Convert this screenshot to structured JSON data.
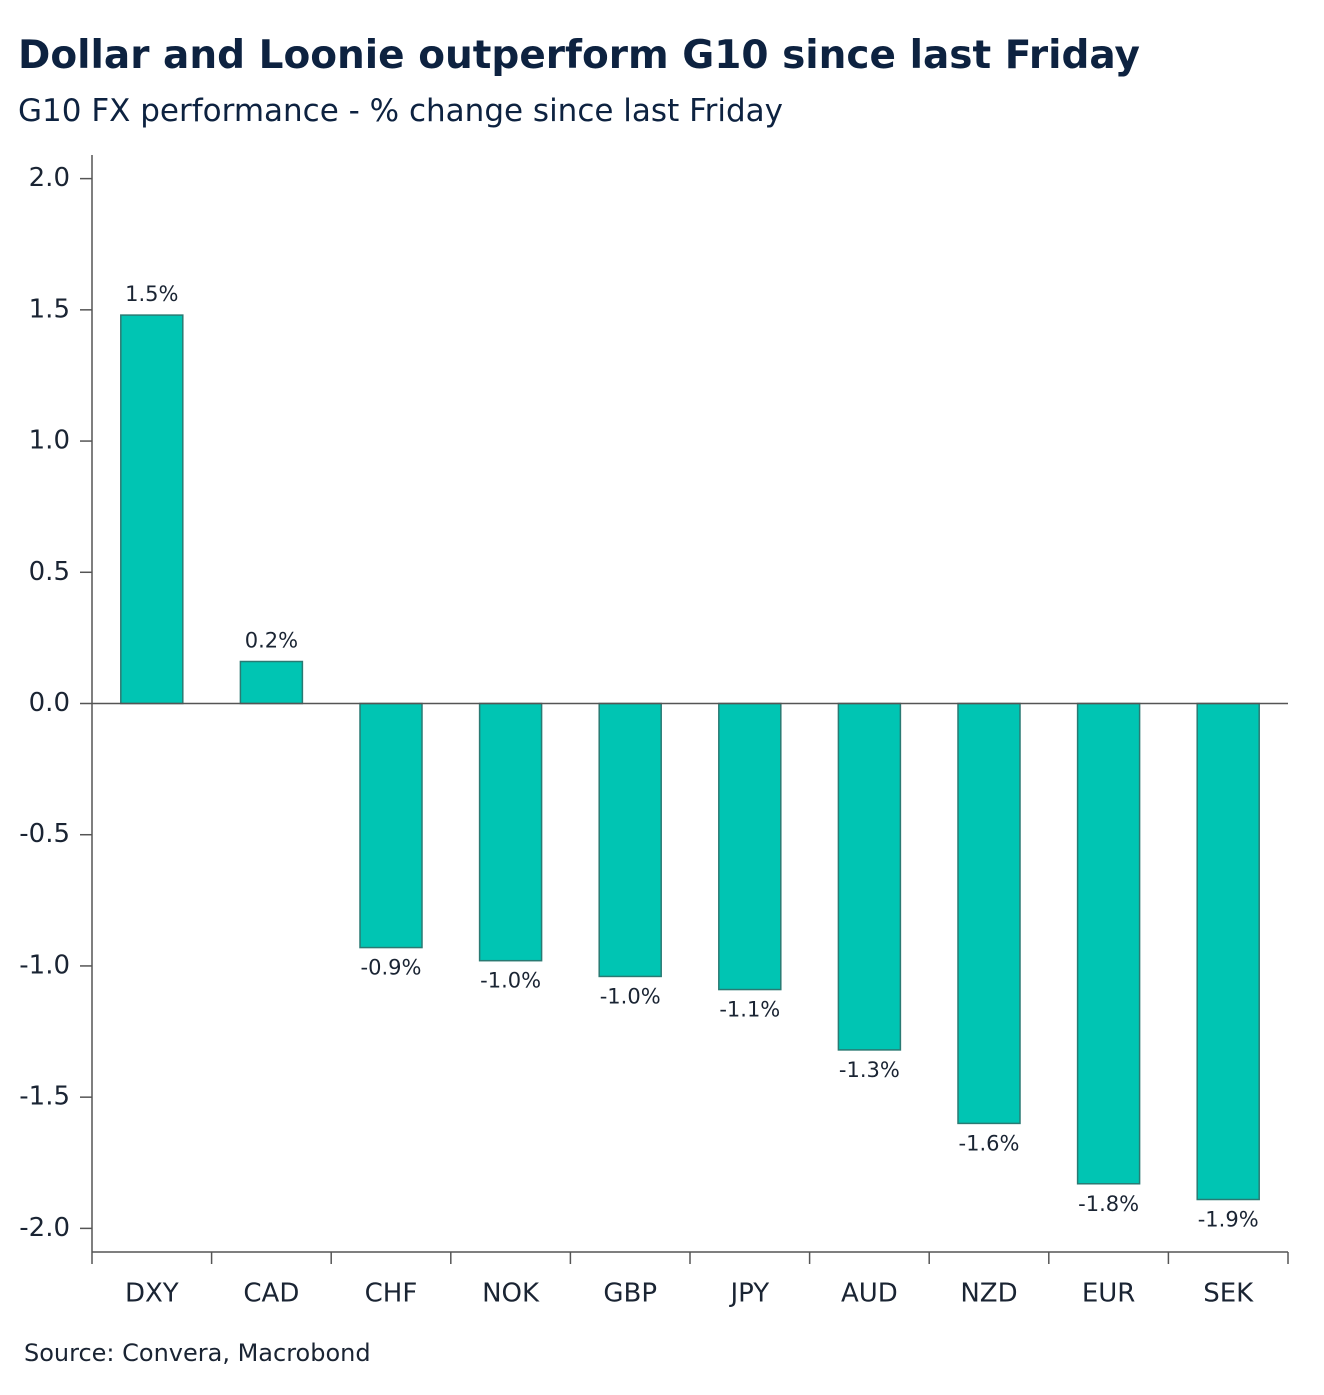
{
  "chart_data": {
    "type": "bar",
    "title": "Dollar and Loonie outperform G10 since last Friday",
    "subtitle": "G10 FX performance - % change since last Friday",
    "source": "Source: Convera, Macrobond",
    "categories": [
      "DXY",
      "CAD",
      "CHF",
      "NOK",
      "GBP",
      "JPY",
      "AUD",
      "NZD",
      "EUR",
      "SEK"
    ],
    "values": [
      1.48,
      0.16,
      -0.93,
      -0.98,
      -1.04,
      -1.09,
      -1.32,
      -1.6,
      -1.83,
      -1.89
    ],
    "value_labels": [
      "1.5%",
      "0.2%",
      "-0.9%",
      "-1.0%",
      "-1.0%",
      "-1.1%",
      "-1.3%",
      "-1.6%",
      "-1.8%",
      "-1.9%"
    ],
    "color": "#00c5b3",
    "ylim": [
      -2.09,
      2.09
    ],
    "yticks": [
      {
        "value": 2,
        "label": "2.0"
      },
      1.5,
      {
        "value": 1,
        "label": "1.0"
      },
      0.5,
      {
        "value": 0,
        "label": "0.0"
      },
      -0.5,
      {
        "value": -1,
        "label": "-1.0"
      },
      -1.5,
      {
        "value": -2,
        "label": "-2.0"
      }
    ],
    "grid": false
  }
}
